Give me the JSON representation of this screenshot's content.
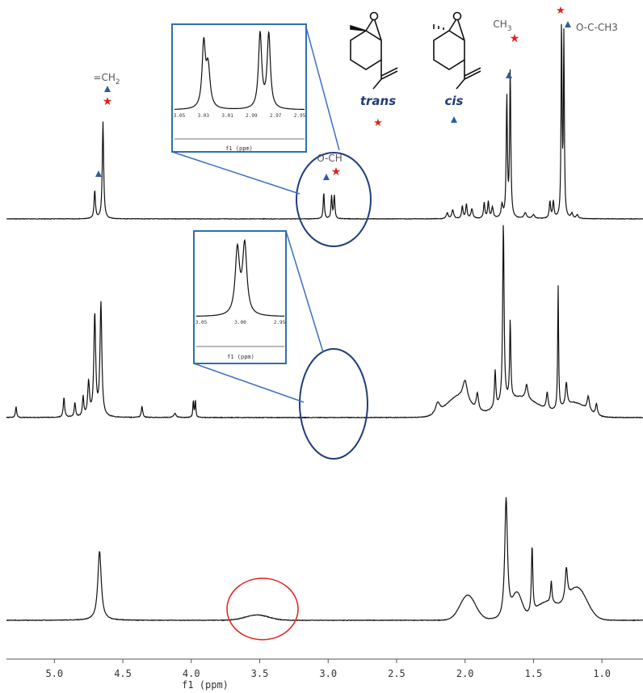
{
  "chart_data": {
    "type": "line",
    "xlabel": "f1 (ppm)",
    "x_reversed": true,
    "xlim": [
      5.35,
      0.7
    ],
    "x_ticks": [
      "5.0",
      "4.5",
      "4.0",
      "3.5",
      "3.0",
      "2.5",
      "2.0",
      "1.5",
      "1.0"
    ],
    "x_tick_values": [
      5.0,
      4.5,
      4.0,
      3.5,
      3.0,
      2.5,
      2.0,
      1.5,
      1.0
    ],
    "series": [
      {
        "baseline": 0.0,
        "peaks": [
          {
            "x": 4.705,
            "h": 0.29,
            "w": 0.006
          },
          {
            "x": 4.645,
            "h": 1.0,
            "w": 0.006
          },
          {
            "x": 3.032,
            "h": 0.27,
            "w": 0.005
          },
          {
            "x": 2.975,
            "h": 0.23,
            "w": 0.005
          },
          {
            "x": 2.955,
            "h": 0.24,
            "w": 0.005
          },
          {
            "x": 2.13,
            "h": 0.06,
            "w": 0.008
          },
          {
            "x": 2.09,
            "h": 0.09,
            "w": 0.008
          },
          {
            "x": 2.02,
            "h": 0.13,
            "w": 0.006
          },
          {
            "x": 1.99,
            "h": 0.15,
            "w": 0.006
          },
          {
            "x": 1.95,
            "h": 0.1,
            "w": 0.008
          },
          {
            "x": 1.86,
            "h": 0.16,
            "w": 0.006
          },
          {
            "x": 1.83,
            "h": 0.17,
            "w": 0.006
          },
          {
            "x": 1.8,
            "h": 0.11,
            "w": 0.008
          },
          {
            "x": 1.73,
            "h": 0.13,
            "w": 0.008
          },
          {
            "x": 1.695,
            "h": 1.24,
            "w": 0.005
          },
          {
            "x": 1.67,
            "h": 1.52,
            "w": 0.005
          },
          {
            "x": 1.56,
            "h": 0.06,
            "w": 0.01
          },
          {
            "x": 1.5,
            "h": 0.04,
            "w": 0.01
          },
          {
            "x": 1.38,
            "h": 0.17,
            "w": 0.006
          },
          {
            "x": 1.355,
            "h": 0.17,
            "w": 0.006
          },
          {
            "x": 1.295,
            "h": 2.04,
            "w": 0.004
          },
          {
            "x": 1.278,
            "h": 1.86,
            "w": 0.004
          },
          {
            "x": 1.22,
            "h": 0.05,
            "w": 0.008
          },
          {
            "x": 1.18,
            "h": 0.04,
            "w": 0.008
          }
        ]
      },
      {
        "baseline": 0.0,
        "peaks": [
          {
            "x": 5.28,
            "h": 0.04,
            "w": 0.005
          },
          {
            "x": 4.93,
            "h": 0.07,
            "w": 0.006
          },
          {
            "x": 4.85,
            "h": 0.05,
            "w": 0.006
          },
          {
            "x": 4.79,
            "h": 0.07,
            "w": 0.006
          },
          {
            "x": 4.75,
            "h": 0.12,
            "w": 0.008
          },
          {
            "x": 4.705,
            "h": 0.36,
            "w": 0.008
          },
          {
            "x": 4.66,
            "h": 0.4,
            "w": 0.008
          },
          {
            "x": 4.36,
            "h": 0.04,
            "w": 0.006
          },
          {
            "x": 4.12,
            "h": 0.015,
            "w": 0.01
          },
          {
            "x": 3.985,
            "h": 0.06,
            "w": 0.004
          },
          {
            "x": 3.97,
            "h": 0.06,
            "w": 0.004
          },
          {
            "x": 2.2,
            "h": 0.04,
            "w": 0.02
          },
          {
            "x": 2.0,
            "h": 0.07,
            "w": 0.02
          },
          {
            "x": 1.91,
            "h": 0.06,
            "w": 0.01
          },
          {
            "x": 1.78,
            "h": 0.13,
            "w": 0.006
          },
          {
            "x": 1.72,
            "h": 0.64,
            "w": 0.006
          },
          {
            "x": 1.67,
            "h": 0.28,
            "w": 0.005
          },
          {
            "x": 1.55,
            "h": 0.05,
            "w": 0.01
          },
          {
            "x": 1.4,
            "h": 0.06,
            "w": 0.008
          },
          {
            "x": 1.32,
            "h": 0.44,
            "w": 0.004
          },
          {
            "x": 1.26,
            "h": 0.08,
            "w": 0.008
          },
          {
            "x": 1.1,
            "h": 0.05,
            "w": 0.01
          },
          {
            "x": 1.04,
            "h": 0.04,
            "w": 0.008
          }
        ],
        "humps": [
          {
            "x": 2.05,
            "h": 0.07,
            "w": 0.12
          },
          {
            "x": 1.6,
            "h": 0.07,
            "w": 0.2
          },
          {
            "x": 1.2,
            "h": 0.05,
            "w": 0.12
          }
        ]
      },
      {
        "baseline": 0.0,
        "peaks": [
          {
            "x": 4.67,
            "h": 0.39,
            "w": 0.015
          },
          {
            "x": 1.7,
            "h": 0.68,
            "w": 0.012
          },
          {
            "x": 1.51,
            "h": 0.38,
            "w": 0.006
          },
          {
            "x": 1.37,
            "h": 0.12,
            "w": 0.006
          },
          {
            "x": 1.26,
            "h": 0.18,
            "w": 0.01
          }
        ],
        "humps": [
          {
            "x": 3.52,
            "h": 0.03,
            "w": 0.12
          },
          {
            "x": 1.98,
            "h": 0.14,
            "w": 0.08
          },
          {
            "x": 1.62,
            "h": 0.14,
            "w": 0.05
          },
          {
            "x": 1.18,
            "h": 0.18,
            "w": 0.1
          },
          {
            "x": 1.4,
            "h": 0.1,
            "w": 0.12
          }
        ]
      }
    ],
    "inset1": {
      "xlabel": "f1 (ppm)",
      "ticks": [
        "3.05",
        "3.03",
        "3.01",
        "2.99",
        "2.97",
        "2.95"
      ]
    },
    "inset2": {
      "xlabel": "f1 (ppm)",
      "ticks": [
        "3.05",
        "3.00",
        "2.95"
      ]
    },
    "annotations": {
      "ch2": "=CH",
      "ch2_sub": "2",
      "och": "O-CH",
      "ch3": "CH",
      "ch3_sub": "3",
      "ococh3": "O-C-CH3",
      "trans": "trans",
      "cis": "cis"
    },
    "colors": {
      "line": "#111111",
      "box": "#2e6fb3",
      "callout_line": "#3d6fc4",
      "ellipse": "#1f3d7a",
      "red_circle": "#e0201c",
      "star": "#e0201c",
      "triangle": "#2e5d9e",
      "label": "#555555",
      "italic_label": "#1f3d7a"
    }
  }
}
